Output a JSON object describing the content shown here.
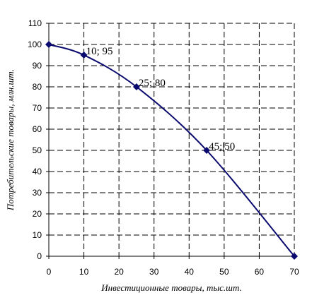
{
  "chart_data": {
    "type": "line",
    "title": "",
    "xlabel": "Инвестиционные товары, тыс.шт.",
    "ylabel": "Потребительские товары, млн.шт.",
    "xlim": [
      0,
      70
    ],
    "ylim": [
      0,
      110
    ],
    "xticks": [
      "0",
      "10",
      "20",
      "30",
      "40",
      "50",
      "60",
      "70"
    ],
    "yticks": [
      "0",
      "10",
      "20",
      "30",
      "40",
      "50",
      "60",
      "70",
      "80",
      "90",
      "100",
      "110"
    ],
    "grid": true,
    "legend": "none",
    "series": [
      {
        "color": "#0a0a6e",
        "x": [
          0,
          10,
          25,
          45,
          70
        ],
        "y": [
          100,
          95,
          80,
          50,
          0
        ]
      }
    ],
    "annotations": [
      {
        "text": "10; 95",
        "x": 10,
        "y": 95
      },
      {
        "text": "25; 80",
        "x": 25,
        "y": 80
      },
      {
        "text": "45;|50",
        "x": 45,
        "y": 50
      }
    ]
  }
}
